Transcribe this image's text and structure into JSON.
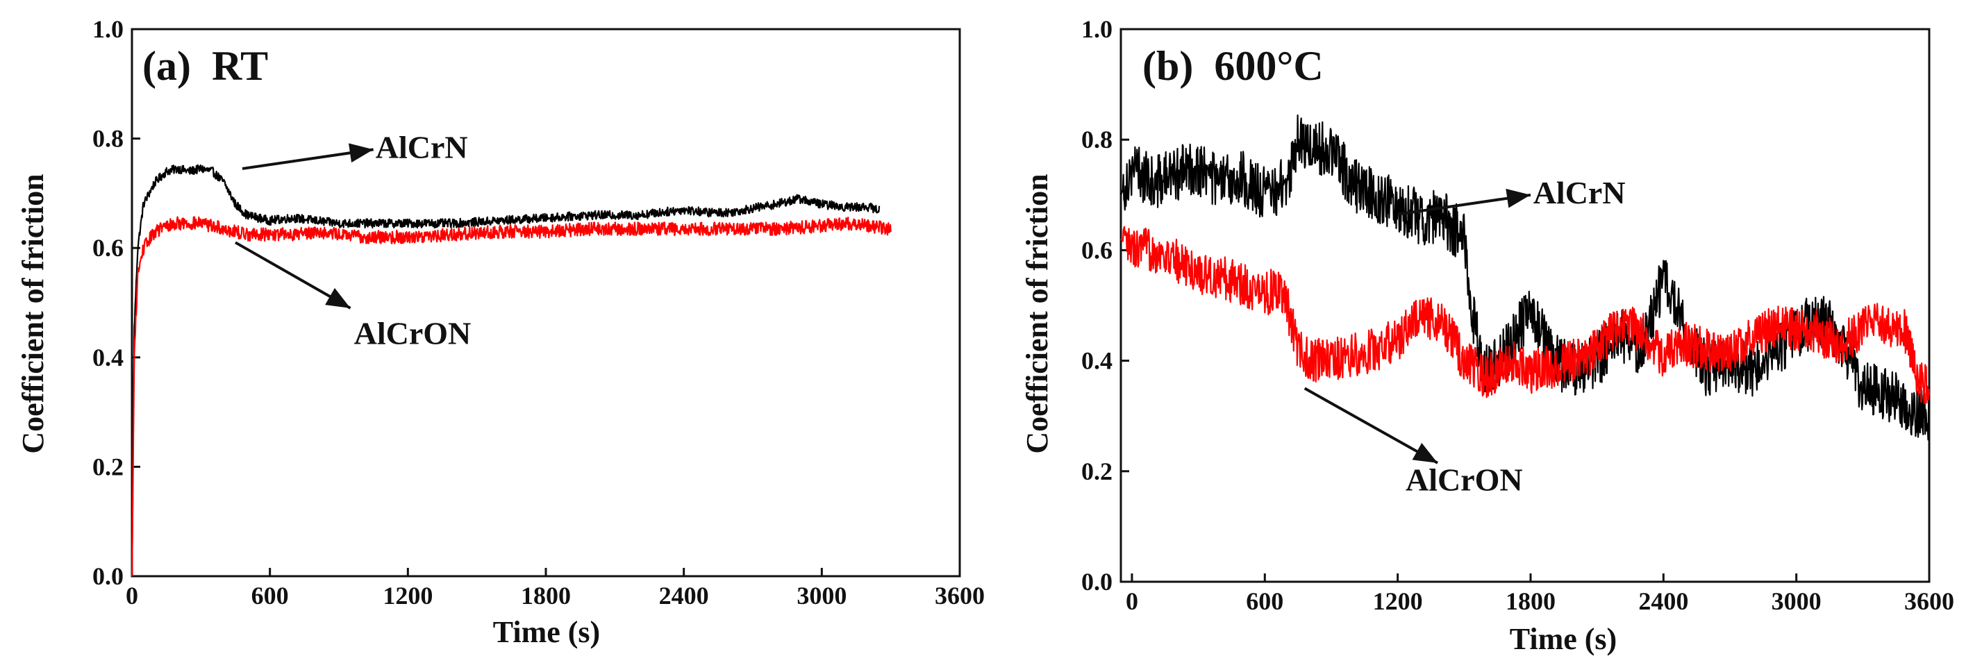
{
  "figure": {
    "description_free": true
  },
  "chart_data": [
    {
      "type": "line",
      "panel_label": "(a)  RT",
      "xlabel": "Time (s)",
      "ylabel": "Coefficient of friction",
      "xlim": [
        0,
        3600
      ],
      "ylim": [
        0.0,
        1.0
      ],
      "x_ticks": [
        0,
        600,
        1200,
        1800,
        2400,
        3000,
        3600
      ],
      "x_tick_labels": [
        "0",
        "600",
        "1200",
        "1800",
        "2400",
        "3000",
        "3600"
      ],
      "y_ticks": [
        0.0,
        0.2,
        0.4,
        0.6,
        0.8,
        1.0
      ],
      "y_tick_labels": [
        "0.0",
        "0.2",
        "0.4",
        "0.6",
        "0.8",
        "1.0"
      ],
      "grid": false,
      "series": [
        {
          "name": "AlCrN",
          "color": "#000000",
          "noise": 0.008,
          "x": [
            0,
            10,
            25,
            50,
            100,
            150,
            200,
            250,
            300,
            350,
            400,
            450,
            500,
            600,
            700,
            800,
            900,
            1000,
            1200,
            1400,
            1600,
            1800,
            2000,
            2200,
            2400,
            2500,
            2600,
            2800,
            2900,
            3000,
            3100,
            3200,
            3250
          ],
          "y": [
            0.0,
            0.45,
            0.6,
            0.68,
            0.72,
            0.74,
            0.745,
            0.74,
            0.745,
            0.74,
            0.72,
            0.68,
            0.66,
            0.65,
            0.655,
            0.65,
            0.645,
            0.645,
            0.645,
            0.645,
            0.65,
            0.655,
            0.66,
            0.66,
            0.67,
            0.665,
            0.665,
            0.68,
            0.69,
            0.68,
            0.675,
            0.675,
            0.67
          ]
        },
        {
          "name": "AlCrON",
          "color": "#ff0000",
          "noise": 0.012,
          "x": [
            0,
            10,
            25,
            50,
            100,
            150,
            200,
            300,
            400,
            500,
            600,
            700,
            800,
            900,
            1000,
            1200,
            1400,
            1600,
            1800,
            2000,
            2200,
            2400,
            2600,
            2800,
            3000,
            3100,
            3200,
            3300
          ],
          "y": [
            0.0,
            0.4,
            0.55,
            0.6,
            0.63,
            0.64,
            0.645,
            0.645,
            0.635,
            0.625,
            0.625,
            0.625,
            0.63,
            0.625,
            0.62,
            0.62,
            0.625,
            0.63,
            0.63,
            0.635,
            0.635,
            0.635,
            0.635,
            0.635,
            0.64,
            0.645,
            0.64,
            0.635
          ]
        }
      ],
      "annotations": [
        {
          "text": "AlCrN",
          "series": "AlCrN",
          "arrow_from": [
            480,
            0.745
          ],
          "arrow_to": [
            1050,
            0.78
          ],
          "label_at": [
            1260,
            0.785
          ]
        },
        {
          "text": "AlCrON",
          "series": "AlCrON",
          "arrow_from": [
            450,
            0.61
          ],
          "arrow_to": [
            950,
            0.49
          ],
          "label_at": [
            1220,
            0.445
          ]
        }
      ]
    },
    {
      "type": "line",
      "panel_label": "(b)  600°C",
      "xlabel": "Time (s)",
      "ylabel": "Coefficient of friction",
      "xlim": [
        -50,
        3600
      ],
      "ylim": [
        0.0,
        1.0
      ],
      "x_ticks": [
        0,
        600,
        1200,
        1800,
        2400,
        3000,
        3600
      ],
      "x_tick_labels": [
        "0",
        "600",
        "1200",
        "1800",
        "2400",
        "3000",
        "3600"
      ],
      "y_ticks": [
        0.0,
        0.2,
        0.4,
        0.6,
        0.8,
        1.0
      ],
      "y_tick_labels": [
        "0.0",
        "0.2",
        "0.4",
        "0.6",
        "0.8",
        "1.0"
      ],
      "grid": false,
      "series": [
        {
          "name": "AlCrN",
          "color": "#000000",
          "noise": 0.05,
          "x": [
            -50,
            0,
            100,
            200,
            300,
            400,
            500,
            600,
            700,
            750,
            800,
            900,
            1000,
            1100,
            1200,
            1300,
            1400,
            1500,
            1550,
            1600,
            1700,
            1800,
            1900,
            2000,
            2100,
            2200,
            2300,
            2400,
            2500,
            2600,
            2700,
            2800,
            2900,
            3000,
            3100,
            3200,
            3300,
            3400,
            3500,
            3600
          ],
          "y": [
            0.7,
            0.75,
            0.72,
            0.74,
            0.75,
            0.72,
            0.73,
            0.7,
            0.72,
            0.8,
            0.79,
            0.78,
            0.72,
            0.7,
            0.68,
            0.66,
            0.66,
            0.62,
            0.45,
            0.38,
            0.42,
            0.5,
            0.4,
            0.38,
            0.4,
            0.45,
            0.42,
            0.55,
            0.45,
            0.38,
            0.4,
            0.38,
            0.42,
            0.45,
            0.48,
            0.44,
            0.35,
            0.34,
            0.32,
            0.3
          ]
        },
        {
          "name": "AlCrON",
          "color": "#ff0000",
          "noise": 0.04,
          "x": [
            -50,
            0,
            100,
            200,
            300,
            400,
            500,
            600,
            650,
            700,
            750,
            800,
            900,
            1000,
            1100,
            1200,
            1300,
            1400,
            1500,
            1600,
            1700,
            1800,
            1900,
            2000,
            2100,
            2200,
            2300,
            2400,
            2500,
            2600,
            2700,
            2800,
            2900,
            3000,
            3100,
            3200,
            3300,
            3350,
            3400,
            3500,
            3550,
            3600
          ],
          "y": [
            0.62,
            0.6,
            0.6,
            0.58,
            0.56,
            0.55,
            0.54,
            0.52,
            0.53,
            0.5,
            0.42,
            0.4,
            0.4,
            0.41,
            0.42,
            0.44,
            0.48,
            0.47,
            0.4,
            0.37,
            0.4,
            0.38,
            0.39,
            0.4,
            0.42,
            0.47,
            0.45,
            0.41,
            0.43,
            0.42,
            0.41,
            0.44,
            0.46,
            0.46,
            0.45,
            0.43,
            0.46,
            0.47,
            0.47,
            0.45,
            0.36,
            0.36
          ]
        }
      ],
      "annotations": [
        {
          "text": "AlCrN",
          "series": "AlCrN",
          "arrow_from": [
            1200,
            0.665
          ],
          "arrow_to": [
            1800,
            0.7
          ],
          "label_at": [
            2020,
            0.705
          ]
        },
        {
          "text": "AlCrON",
          "series": "AlCrON",
          "arrow_from": [
            780,
            0.35
          ],
          "arrow_to": [
            1380,
            0.215
          ],
          "label_at": [
            1500,
            0.185
          ]
        }
      ]
    }
  ]
}
